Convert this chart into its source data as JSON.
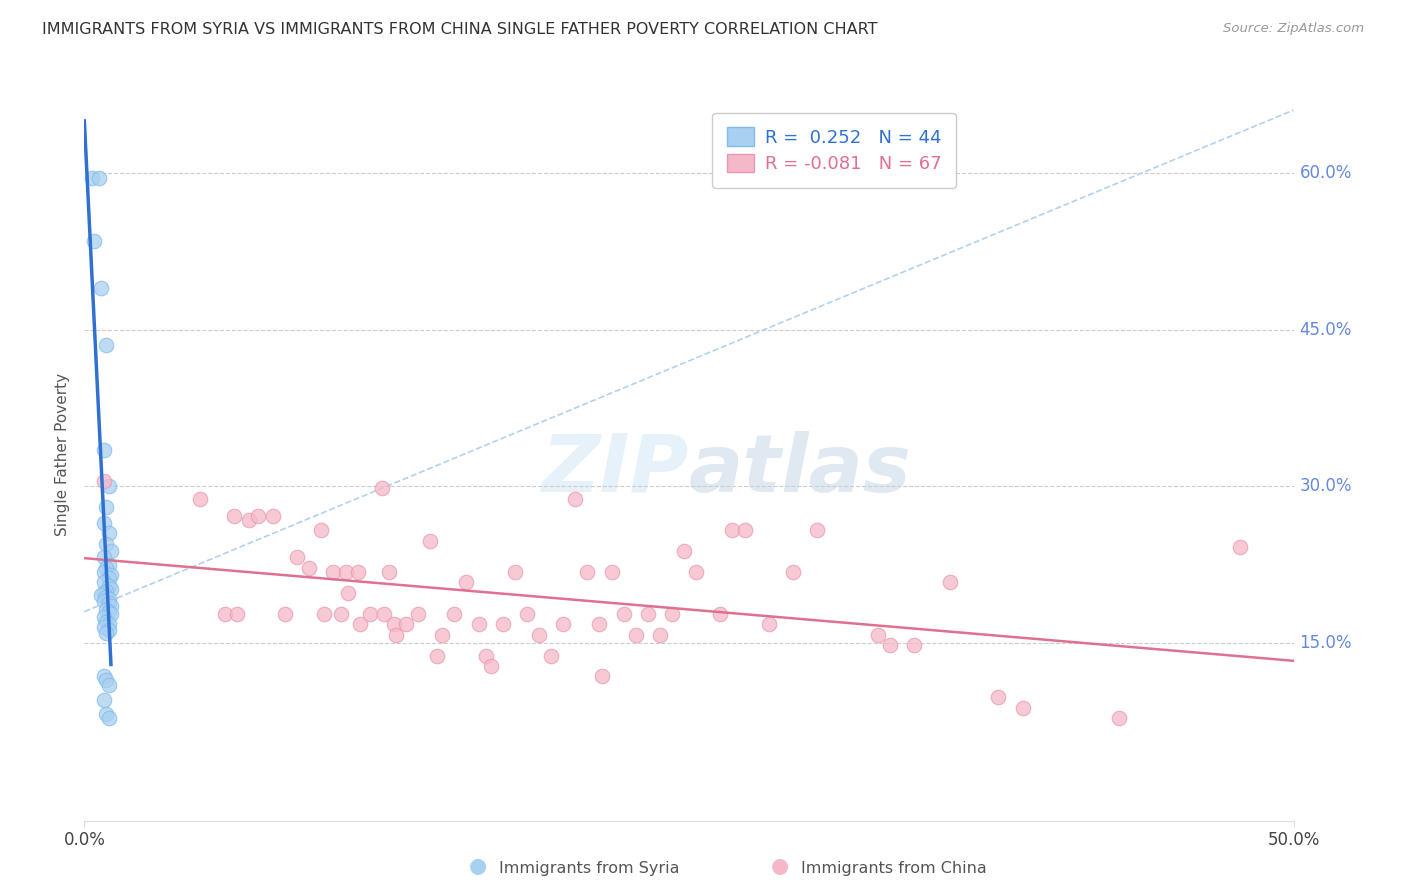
{
  "title": "IMMIGRANTS FROM SYRIA VS IMMIGRANTS FROM CHINA SINGLE FATHER POVERTY CORRELATION CHART",
  "source": "Source: ZipAtlas.com",
  "ylabel": "Single Father Poverty",
  "right_yticks": [
    "60.0%",
    "45.0%",
    "30.0%",
    "15.0%"
  ],
  "right_ytick_vals": [
    0.6,
    0.45,
    0.3,
    0.15
  ],
  "xlim": [
    0.0,
    0.5
  ],
  "ylim": [
    -0.02,
    0.68
  ],
  "legend_r_syria": "0.252",
  "legend_n_syria": "44",
  "legend_r_china": "-0.081",
  "legend_n_china": "67",
  "syria_color": "#A8D0F0",
  "china_color": "#F5B8C8",
  "syria_line_color": "#3070D0",
  "china_line_color": "#E07090",
  "dashed_line_color": "#AACCEE",
  "syria_points": [
    [
      0.003,
      0.595
    ],
    [
      0.006,
      0.595
    ],
    [
      0.004,
      0.535
    ],
    [
      0.007,
      0.49
    ],
    [
      0.009,
      0.435
    ],
    [
      0.008,
      0.335
    ],
    [
      0.01,
      0.3
    ],
    [
      0.009,
      0.28
    ],
    [
      0.008,
      0.265
    ],
    [
      0.01,
      0.255
    ],
    [
      0.009,
      0.245
    ],
    [
      0.011,
      0.238
    ],
    [
      0.008,
      0.232
    ],
    [
      0.01,
      0.225
    ],
    [
      0.009,
      0.222
    ],
    [
      0.008,
      0.218
    ],
    [
      0.011,
      0.215
    ],
    [
      0.01,
      0.212
    ],
    [
      0.008,
      0.208
    ],
    [
      0.01,
      0.205
    ],
    [
      0.011,
      0.202
    ],
    [
      0.009,
      0.2
    ],
    [
      0.008,
      0.198
    ],
    [
      0.007,
      0.196
    ],
    [
      0.009,
      0.194
    ],
    [
      0.01,
      0.192
    ],
    [
      0.008,
      0.19
    ],
    [
      0.01,
      0.188
    ],
    [
      0.011,
      0.185
    ],
    [
      0.009,
      0.182
    ],
    [
      0.01,
      0.18
    ],
    [
      0.011,
      0.178
    ],
    [
      0.008,
      0.175
    ],
    [
      0.009,
      0.17
    ],
    [
      0.01,
      0.168
    ],
    [
      0.008,
      0.165
    ],
    [
      0.01,
      0.162
    ],
    [
      0.009,
      0.16
    ],
    [
      0.008,
      0.118
    ],
    [
      0.009,
      0.115
    ],
    [
      0.01,
      0.11
    ],
    [
      0.008,
      0.095
    ],
    [
      0.009,
      0.082
    ],
    [
      0.01,
      0.078
    ]
  ],
  "china_points": [
    [
      0.008,
      0.305
    ],
    [
      0.048,
      0.288
    ],
    [
      0.058,
      0.178
    ],
    [
      0.062,
      0.272
    ],
    [
      0.063,
      0.178
    ],
    [
      0.068,
      0.268
    ],
    [
      0.072,
      0.272
    ],
    [
      0.078,
      0.272
    ],
    [
      0.083,
      0.178
    ],
    [
      0.088,
      0.232
    ],
    [
      0.093,
      0.222
    ],
    [
      0.098,
      0.258
    ],
    [
      0.099,
      0.178
    ],
    [
      0.103,
      0.218
    ],
    [
      0.106,
      0.178
    ],
    [
      0.108,
      0.218
    ],
    [
      0.109,
      0.198
    ],
    [
      0.113,
      0.218
    ],
    [
      0.114,
      0.168
    ],
    [
      0.118,
      0.178
    ],
    [
      0.123,
      0.298
    ],
    [
      0.124,
      0.178
    ],
    [
      0.126,
      0.218
    ],
    [
      0.128,
      0.168
    ],
    [
      0.129,
      0.158
    ],
    [
      0.133,
      0.168
    ],
    [
      0.138,
      0.178
    ],
    [
      0.143,
      0.248
    ],
    [
      0.146,
      0.138
    ],
    [
      0.148,
      0.158
    ],
    [
      0.153,
      0.178
    ],
    [
      0.158,
      0.208
    ],
    [
      0.163,
      0.168
    ],
    [
      0.166,
      0.138
    ],
    [
      0.168,
      0.128
    ],
    [
      0.173,
      0.168
    ],
    [
      0.178,
      0.218
    ],
    [
      0.183,
      0.178
    ],
    [
      0.188,
      0.158
    ],
    [
      0.193,
      0.138
    ],
    [
      0.198,
      0.168
    ],
    [
      0.203,
      0.288
    ],
    [
      0.208,
      0.218
    ],
    [
      0.213,
      0.168
    ],
    [
      0.214,
      0.118
    ],
    [
      0.218,
      0.218
    ],
    [
      0.223,
      0.178
    ],
    [
      0.228,
      0.158
    ],
    [
      0.233,
      0.178
    ],
    [
      0.238,
      0.158
    ],
    [
      0.243,
      0.178
    ],
    [
      0.248,
      0.238
    ],
    [
      0.253,
      0.218
    ],
    [
      0.263,
      0.178
    ],
    [
      0.268,
      0.258
    ],
    [
      0.273,
      0.258
    ],
    [
      0.283,
      0.168
    ],
    [
      0.293,
      0.218
    ],
    [
      0.303,
      0.258
    ],
    [
      0.328,
      0.158
    ],
    [
      0.333,
      0.148
    ],
    [
      0.343,
      0.148
    ],
    [
      0.358,
      0.208
    ],
    [
      0.378,
      0.098
    ],
    [
      0.388,
      0.088
    ],
    [
      0.428,
      0.078
    ],
    [
      0.478,
      0.242
    ]
  ]
}
